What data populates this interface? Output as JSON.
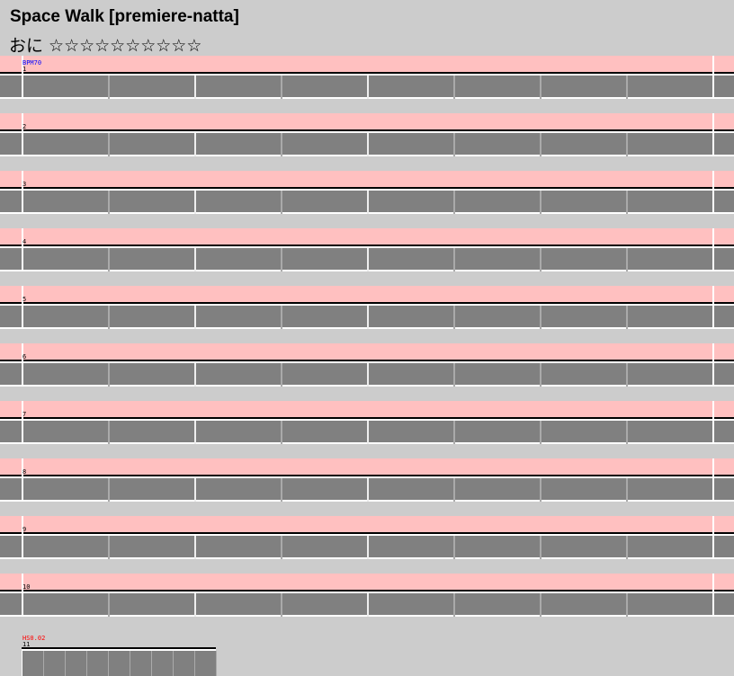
{
  "header": {
    "title": "Space Walk [premiere-natta]",
    "difficulty": "おに ☆☆☆☆☆☆☆☆☆☆"
  },
  "rows": [
    {
      "label": "1",
      "annotation": "BPM70"
    },
    {
      "label": "2"
    },
    {
      "label": "3"
    },
    {
      "label": "4"
    },
    {
      "label": "5"
    },
    {
      "label": "6"
    },
    {
      "label": "7"
    },
    {
      "label": "8"
    },
    {
      "label": "9"
    },
    {
      "label": "10"
    },
    {
      "label": "11",
      "annotation": "HS0.02"
    }
  ]
}
